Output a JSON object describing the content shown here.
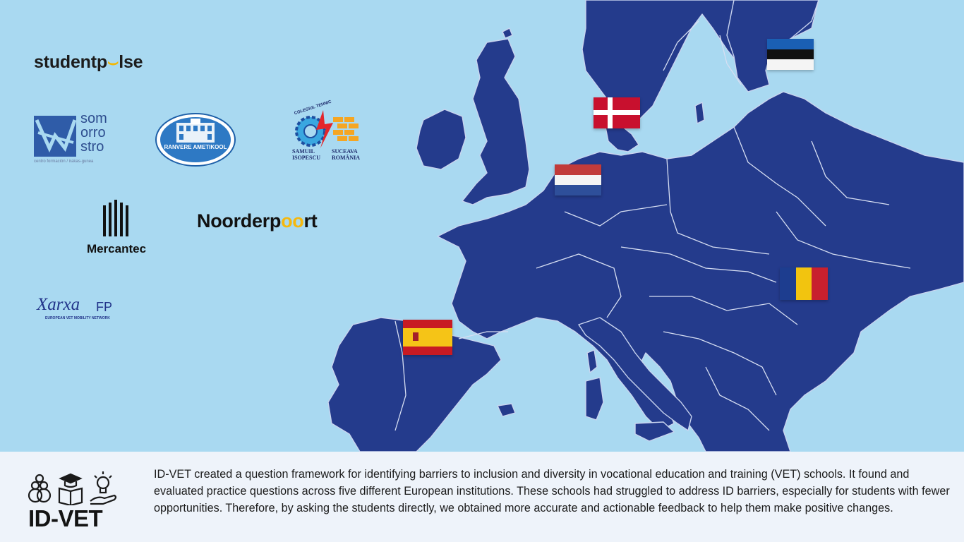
{
  "partner_logos": {
    "studentpulse": {
      "text_before": "studentp",
      "text_accent": "⌣",
      "text_after": "lse"
    },
    "somorrostro": {
      "words": [
        "som",
        "orro",
        "stro"
      ],
      "tagline": "centro formación / irakas-gunea"
    },
    "ranvere": {
      "seal_text": "RANVERE AMETIKOOL"
    },
    "colegiul": {
      "arc_text": "COLEGIUL TEHNIC",
      "left_text": [
        "SAMUIL",
        "ISOPESCU"
      ],
      "right_text": [
        "SUCEAVA",
        "ROMÂNIA"
      ]
    },
    "mercantec": {
      "name": "Mercantec"
    },
    "noorderpoort": {
      "text_before": "Noorderp",
      "text_accent": "oo",
      "text_after": "rt"
    },
    "xarxa": {
      "name": "Xarxa",
      "suffix": "FP",
      "tagline": "EUROPEAN VET MOBILITY NETWORK"
    }
  },
  "map": {
    "flags": [
      {
        "country": "Estonia",
        "icon": "estonia-flag"
      },
      {
        "country": "Denmark",
        "icon": "denmark-flag"
      },
      {
        "country": "Netherlands",
        "icon": "netherlands-flag"
      },
      {
        "country": "Romania",
        "icon": "romania-flag"
      },
      {
        "country": "Spain",
        "icon": "spain-flag"
      }
    ],
    "colors": {
      "sea": "#a9d9f1",
      "land": "#243b8c",
      "borders": "#d6def2"
    }
  },
  "footer": {
    "brand": "ID-VET",
    "description": "ID-VET created a question framework for identifying barriers to inclusion and diversity in vocational education and training (VET) schools. It found and evaluated practice questions across five different European institutions. These schools had struggled to address ID barriers, especially for students with fewer opportunities. Therefore, by asking the students directly, we obtained more accurate and actionable feedback to help them make positive changes."
  }
}
